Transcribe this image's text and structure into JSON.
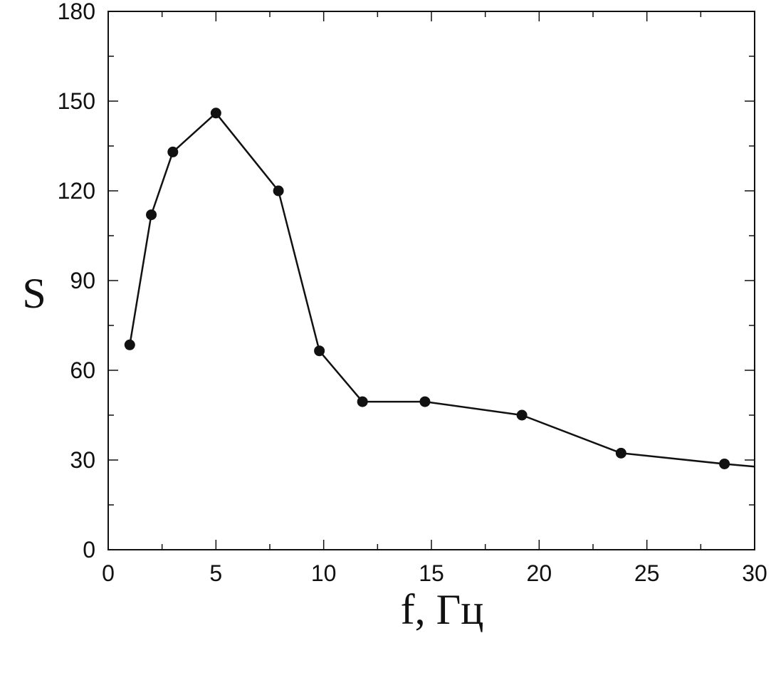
{
  "chart_data": {
    "type": "line",
    "title": "",
    "xlabel": "f, Гц",
    "ylabel": "S",
    "xlim": [
      0,
      30
    ],
    "ylim": [
      0,
      180
    ],
    "xticks": [
      0,
      5,
      10,
      15,
      20,
      25,
      30
    ],
    "yticks": [
      0,
      30,
      60,
      90,
      120,
      150,
      180
    ],
    "xtick_labels": [
      "0",
      "5",
      "10",
      "15",
      "20",
      "25",
      "30"
    ],
    "ytick_labels": [
      "0",
      "30",
      "60",
      "90",
      "120",
      "150",
      "180"
    ],
    "grid": false,
    "marker": "filled-circle",
    "line_color": "#111111",
    "x": [
      1.0,
      2.0,
      3.0,
      5.0,
      7.9,
      9.8,
      11.8,
      14.7,
      19.2,
      23.8,
      28.6
    ],
    "y": [
      68.5,
      112,
      133,
      146,
      120,
      66.5,
      49.5,
      49.5,
      45,
      32.3,
      28.7
    ],
    "line_end": [
      30,
      27.8
    ]
  }
}
